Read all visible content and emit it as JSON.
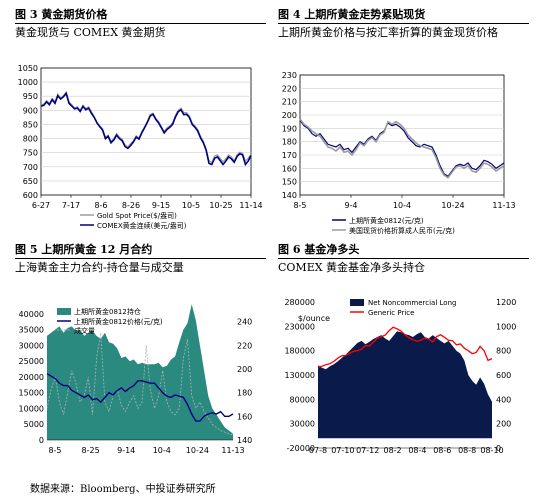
{
  "panels": {
    "p3": {
      "title": "图 3  黄金期货价格",
      "subtitle": "黄金现货与 COMEX 黄金期货"
    },
    "p4": {
      "title": "图 4  上期所黄金走势紧贴现货",
      "subtitle": "上期所黄金价格与按汇率折算的黄金现货价格"
    },
    "p5": {
      "title": "图 5  上期所黄金 12 月合约",
      "subtitle": "上海黄金主力合约-持仓量与成交量"
    },
    "p6": {
      "title": "图 6  基金净多头",
      "subtitle": "COMEX 黄金基金净多头持仓"
    }
  },
  "source": "数据来源：Bloomberg、中投证券研究所",
  "colors": {
    "navy": "#000080",
    "gray": "#9a9a9a",
    "teal": "#2b8a80",
    "red": "#ff0000",
    "darknavy": "#0a1a4a"
  },
  "chart_data": [
    {
      "id": "fig3",
      "type": "line",
      "x_labels": [
        "6-27",
        "7-17",
        "8-6",
        "8-26",
        "9-15",
        "10-5",
        "10-25",
        "11-14"
      ],
      "ylim": [
        600,
        1050
      ],
      "y_ticks": [
        600,
        650,
        700,
        750,
        800,
        850,
        900,
        950,
        1000,
        1050
      ],
      "grid": true,
      "legend_position": "bottom-center",
      "series": [
        {
          "name": "Gold Spot Price($/盎司)",
          "color": "#9a9a9a",
          "values": [
            918,
            922,
            935,
            925,
            942,
            930,
            958,
            942,
            952,
            965,
            930,
            920,
            908,
            912,
            900,
            918,
            906,
            912,
            895,
            878,
            858,
            845,
            835,
            805,
            812,
            790,
            800,
            818,
            805,
            798,
            778,
            770,
            782,
            792,
            810,
            802,
            825,
            842,
            862,
            885,
            890,
            872,
            860,
            842,
            825,
            838,
            845,
            856,
            882,
            900,
            908,
            892,
            892,
            880,
            855,
            845,
            832,
            808,
            790,
            762,
            722,
            715,
            738,
            742,
            730,
            718,
            728,
            742,
            735,
            722,
            742,
            752,
            748,
            720,
            730,
            745
          ]
        },
        {
          "name": "COMEX黄金连续(美元/盎司)",
          "color": "#000080",
          "values": [
            915,
            918,
            930,
            920,
            938,
            925,
            952,
            940,
            948,
            960,
            925,
            915,
            905,
            908,
            896,
            914,
            902,
            908,
            890,
            875,
            855,
            842,
            830,
            800,
            808,
            785,
            795,
            812,
            800,
            792,
            772,
            765,
            775,
            788,
            805,
            798,
            820,
            838,
            858,
            880,
            886,
            868,
            855,
            838,
            820,
            832,
            840,
            850,
            876,
            895,
            902,
            885,
            886,
            875,
            850,
            840,
            826,
            802,
            785,
            758,
            712,
            708,
            730,
            735,
            722,
            708,
            720,
            735,
            728,
            716,
            736,
            746,
            742,
            708,
            720,
            740
          ]
        }
      ]
    },
    {
      "id": "fig4",
      "type": "line",
      "x_labels": [
        "8-5",
        "9-4",
        "10-4",
        "10-24",
        "11-13"
      ],
      "ylim": [
        140,
        230
      ],
      "y_ticks": [
        140,
        150,
        160,
        170,
        180,
        190,
        200,
        210,
        220,
        230
      ],
      "grid": true,
      "legend_position": "bottom-center",
      "series": [
        {
          "name": "上期所黄金0812(元/克)",
          "color": "#000080",
          "values": [
            196,
            192,
            190,
            186,
            184,
            186,
            182,
            178,
            177,
            176,
            178,
            174,
            175,
            172,
            176,
            180,
            178,
            182,
            184,
            181,
            186,
            188,
            194,
            192,
            193,
            191,
            188,
            183,
            180,
            177,
            176,
            178,
            177,
            176,
            170,
            162,
            156,
            154,
            158,
            162,
            163,
            162,
            164,
            160,
            159,
            162,
            166,
            165,
            163,
            160,
            162,
            164
          ]
        },
        {
          "name": "美国现货价格折算成人民币(元/克)",
          "color": "#9a9a9a",
          "values": [
            197,
            193,
            191,
            188,
            186,
            184,
            180,
            176,
            175,
            173,
            176,
            172,
            173,
            170,
            174,
            179,
            177,
            181,
            183,
            180,
            185,
            187,
            195,
            193,
            195,
            193,
            190,
            185,
            182,
            179,
            177,
            176,
            175,
            174,
            168,
            160,
            155,
            153,
            157,
            161,
            162,
            160,
            162,
            158,
            157,
            160,
            164,
            163,
            161,
            158,
            160,
            162
          ]
        }
      ]
    },
    {
      "id": "fig5",
      "type": "area",
      "x_labels": [
        "8-5",
        "8-25",
        "9-14",
        "10-4",
        "10-24",
        "11-13"
      ],
      "ylim_left": [
        0,
        45000
      ],
      "y_ticks_left": [
        0,
        5000,
        10000,
        15000,
        20000,
        25000,
        30000,
        35000,
        40000
      ],
      "ylim_right": [
        140,
        260
      ],
      "y_ticks_right": [
        140,
        160,
        180,
        200,
        220,
        240
      ],
      "grid": false,
      "legend_position": "top-left",
      "series": [
        {
          "name": "上期所黄金0812持仓",
          "color": "#2b8a80",
          "axis": "left",
          "values": [
            33000,
            34000,
            35000,
            36000,
            34000,
            35500,
            36000,
            34500,
            35000,
            33000,
            34000,
            34500,
            33000,
            32000,
            34000,
            31000,
            30500,
            29000,
            26000,
            26500,
            25000,
            25500,
            24000,
            24500,
            24000,
            24000,
            24000,
            24500,
            23000,
            23500,
            25500,
            26500,
            31000,
            35000,
            37000,
            43000,
            38000,
            30000,
            22000,
            14000,
            10000,
            8000,
            6000,
            4000,
            3000,
            2000
          ]
        },
        {
          "name": "上期所黄金0812价格(元/克)",
          "color": "#000080",
          "axis": "right",
          "values": [
            196,
            194,
            192,
            188,
            186,
            186,
            182,
            180,
            178,
            176,
            178,
            174,
            175,
            172,
            176,
            180,
            178,
            182,
            184,
            181,
            184,
            186,
            190,
            190,
            189,
            188,
            188,
            184,
            180,
            177,
            176,
            178,
            177,
            176,
            170,
            162,
            156,
            156,
            160,
            162,
            163,
            162,
            164,
            160,
            160,
            162
          ]
        },
        {
          "name": "成交量",
          "color": "#b0b0b0",
          "axis": "left",
          "values": [
            10000,
            16000,
            20000,
            12000,
            8000,
            15000,
            22000,
            18000,
            12000,
            14000,
            20000,
            8000,
            26000,
            34000,
            12000,
            9000,
            14000,
            16000,
            11000,
            9000,
            12000,
            14000,
            10000,
            12000,
            30000,
            16000,
            10000,
            14000,
            22000,
            12000,
            9000,
            8000,
            10000,
            26000,
            32000,
            14000,
            10000,
            12000,
            9000,
            7000,
            5000,
            4000,
            3000,
            2500,
            2000,
            1500
          ]
        }
      ]
    },
    {
      "id": "fig6",
      "type": "area",
      "x_labels": [
        "07-8",
        "07-10",
        "07-12",
        "08-2",
        "08-4",
        "08-6",
        "08-8",
        "08-10"
      ],
      "ylim_left": [
        -20000,
        280000
      ],
      "y_ticks_left": [
        -20000,
        30000,
        80000,
        130000,
        180000,
        230000,
        280000
      ],
      "ylim_right": [
        0,
        1200
      ],
      "y_ticks_right": [
        0,
        200,
        400,
        600,
        800,
        1000,
        1200
      ],
      "unit_left": "$/ounce",
      "grid": false,
      "legend_position": "top-left",
      "series": [
        {
          "name": "Net Noncommercial Long",
          "color": "#0a1a4a",
          "axis": "left",
          "values": [
            150000,
            145000,
            142000,
            148000,
            152000,
            158000,
            165000,
            172000,
            180000,
            188000,
            196000,
            200000,
            193000,
            198000,
            204000,
            208000,
            212000,
            205000,
            200000,
            210000,
            220000,
            218000,
            214000,
            212000,
            208000,
            214000,
            218000,
            208000,
            205000,
            212000,
            206000,
            200000,
            195000,
            200000,
            190000,
            180000,
            174000,
            160000,
            130000,
            118000,
            110000,
            125000,
            112000,
            90000,
            75000
          ]
        },
        {
          "name": "Generic Price",
          "color": "#ff0000",
          "axis": "right",
          "values": [
            665,
            672,
            685,
            692,
            712,
            738,
            758,
            760,
            780,
            795,
            800,
            812,
            842,
            838,
            870,
            902,
            915,
            928,
            965,
            992,
            980,
            962,
            930,
            905,
            890,
            878,
            885,
            905,
            895,
            872,
            915,
            930,
            910,
            885,
            882,
            848,
            855,
            820,
            800,
            775,
            785,
            835,
            800,
            720,
            735
          ]
        }
      ]
    }
  ]
}
